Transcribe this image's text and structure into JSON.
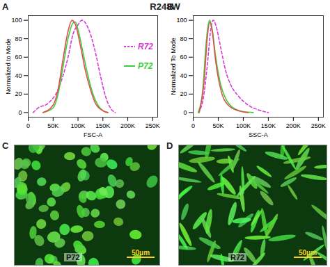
{
  "title": "R248W",
  "chart_data": [
    {
      "type": "line",
      "panel": "A",
      "x_label": "FSC-A",
      "y_label": "Normalized to Mode",
      "xlim": [
        0,
        260000
      ],
      "xticks": [
        {
          "value": 0,
          "label": "0"
        },
        {
          "value": 50000,
          "label": "50K"
        },
        {
          "value": 100000,
          "label": "100K"
        },
        {
          "value": 150000,
          "label": "150K"
        },
        {
          "value": 200000,
          "label": "200K"
        },
        {
          "value": 250000,
          "label": "250K"
        }
      ],
      "ylim": [
        -5,
        105
      ],
      "yticks": [
        0,
        20,
        40,
        60,
        80,
        100
      ],
      "legend": "right",
      "series": [
        {
          "name": "R72",
          "color": "#d63ad6",
          "line_style": "dashed",
          "x": [
            10000,
            20000,
            40000,
            60000,
            80000,
            90000,
            100000,
            108000,
            115000,
            125000,
            135000,
            145000,
            155000,
            165000,
            175000
          ],
          "values": [
            0,
            5,
            10,
            25,
            60,
            85,
            95,
            100,
            97,
            85,
            65,
            40,
            18,
            5,
            0
          ]
        },
        {
          "name": "P72",
          "color": "#3ccf3c",
          "line_style": "solid",
          "x": [
            30000,
            50000,
            60000,
            70000,
            80000,
            90000,
            95000,
            100000,
            110000,
            120000,
            130000,
            140000,
            150000,
            160000
          ],
          "values": [
            0,
            5,
            20,
            50,
            80,
            97,
            98,
            90,
            65,
            40,
            20,
            8,
            2,
            0
          ]
        },
        {
          "name": null,
          "color": "#e05050",
          "line_style": "solid",
          "x": [
            30000,
            50000,
            60000,
            70000,
            80000,
            88000,
            95000,
            105000,
            115000,
            125000,
            135000,
            150000,
            160000
          ],
          "values": [
            0,
            8,
            25,
            58,
            88,
            100,
            95,
            72,
            45,
            25,
            10,
            2,
            0
          ]
        }
      ]
    },
    {
      "type": "line",
      "panel": "B",
      "x_label": "SSC-A",
      "y_label": "Normalized To Mode",
      "xlim": [
        0,
        260000
      ],
      "xticks": [
        {
          "value": 0,
          "label": "0"
        },
        {
          "value": 50000,
          "label": "50K"
        },
        {
          "value": 100000,
          "label": "100K"
        },
        {
          "value": 150000,
          "label": "150K"
        },
        {
          "value": 200000,
          "label": "200K"
        },
        {
          "value": 250000,
          "label": "250K"
        }
      ],
      "ylim": [
        -5,
        105
      ],
      "yticks": [
        0,
        20,
        40,
        60,
        80,
        100
      ],
      "series": [
        {
          "name": null,
          "color": "#d63ad6",
          "line_style": "dashed",
          "x": [
            10000,
            20000,
            28000,
            35000,
            40000,
            45000,
            55000,
            65000,
            75000,
            90000,
            110000,
            130000,
            150000
          ],
          "values": [
            0,
            15,
            50,
            90,
            100,
            95,
            70,
            45,
            30,
            18,
            8,
            3,
            0
          ]
        },
        {
          "name": null,
          "color": "#3ccf3c",
          "line_style": "solid",
          "x": [
            10000,
            20000,
            25000,
            30000,
            33000,
            38000,
            45000,
            55000,
            65000,
            80000,
            100000,
            120000
          ],
          "values": [
            0,
            30,
            70,
            95,
            100,
            90,
            60,
            30,
            15,
            5,
            1,
            0
          ]
        },
        {
          "name": null,
          "color": "#e05050",
          "line_style": "solid",
          "x": [
            12000,
            22000,
            28000,
            33000,
            38000,
            45000,
            55000,
            70000,
            90000,
            110000
          ],
          "values": [
            0,
            35,
            80,
            98,
            88,
            55,
            25,
            8,
            2,
            0
          ]
        }
      ]
    }
  ],
  "images": [
    {
      "panel": "C",
      "label": "P72",
      "scale_bar": "50μm"
    },
    {
      "panel": "D",
      "label": "R72",
      "scale_bar": "50μm"
    }
  ]
}
